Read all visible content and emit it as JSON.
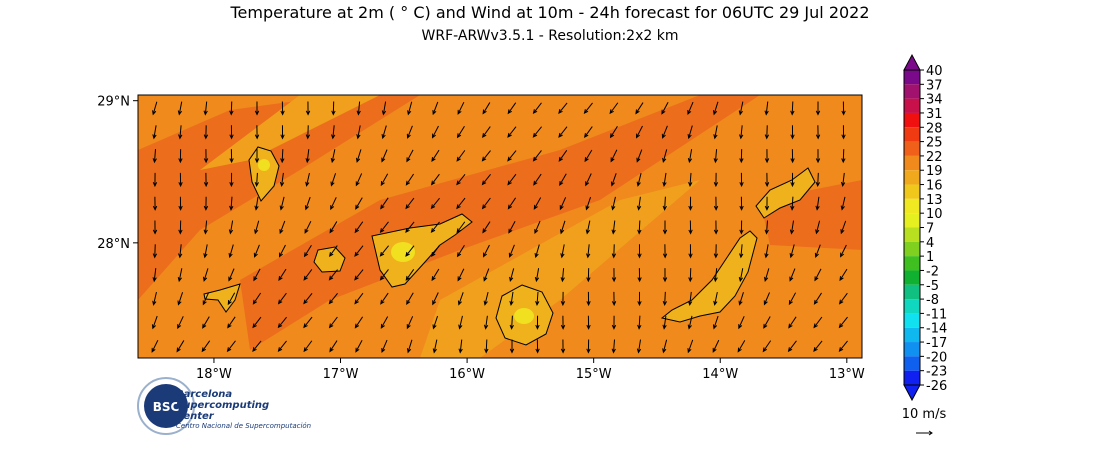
{
  "header": {
    "title": "Temperature at 2m ( ° C) and Wind at 10m - 24h forecast for 06UTC 29 Jul 2022",
    "subtitle": "WRF-ARWv3.5.1 - Resolution:2x2 km"
  },
  "map": {
    "lon_range": [
      -18.6,
      -12.88
    ],
    "lat_range": [
      27.19,
      29.04
    ],
    "lon_ticks": [
      {
        "value": -18,
        "label": "18°W"
      },
      {
        "value": -17,
        "label": "17°W"
      },
      {
        "value": -16,
        "label": "16°W"
      },
      {
        "value": -15,
        "label": "15°W"
      },
      {
        "value": -14,
        "label": "14°W"
      },
      {
        "value": -13,
        "label": "13°W"
      }
    ],
    "lat_ticks": [
      {
        "value": 29,
        "label": "29°N"
      },
      {
        "value": 28,
        "label": "28°N"
      }
    ]
  },
  "colorbar": {
    "ticks": [
      40,
      37,
      34,
      31,
      28,
      25,
      22,
      19,
      16,
      13,
      10,
      7,
      4,
      1,
      -2,
      -5,
      -8,
      -11,
      -14,
      -17,
      -20,
      -23,
      -26
    ],
    "colors": [
      "#7a0a8a",
      "#a0126e",
      "#c8104a",
      "#f01010",
      "#f03a12",
      "#f0601a",
      "#f08a1c",
      "#f0a81c",
      "#f0c81c",
      "#f0e820",
      "#e6f020",
      "#b8e020",
      "#80d020",
      "#40c020",
      "#10b030",
      "#10c080",
      "#10d8c0",
      "#10e0f0",
      "#10b8f0",
      "#1090f0",
      "#1060f0",
      "#1020f0"
    ]
  },
  "wind_key": {
    "label": "10 m/s"
  },
  "logo": {
    "abbr": "BSC",
    "name": [
      "Barcelona",
      "Supercomputing",
      "Center"
    ],
    "subtitle": "Centro Nacional de Supercomputación"
  }
}
